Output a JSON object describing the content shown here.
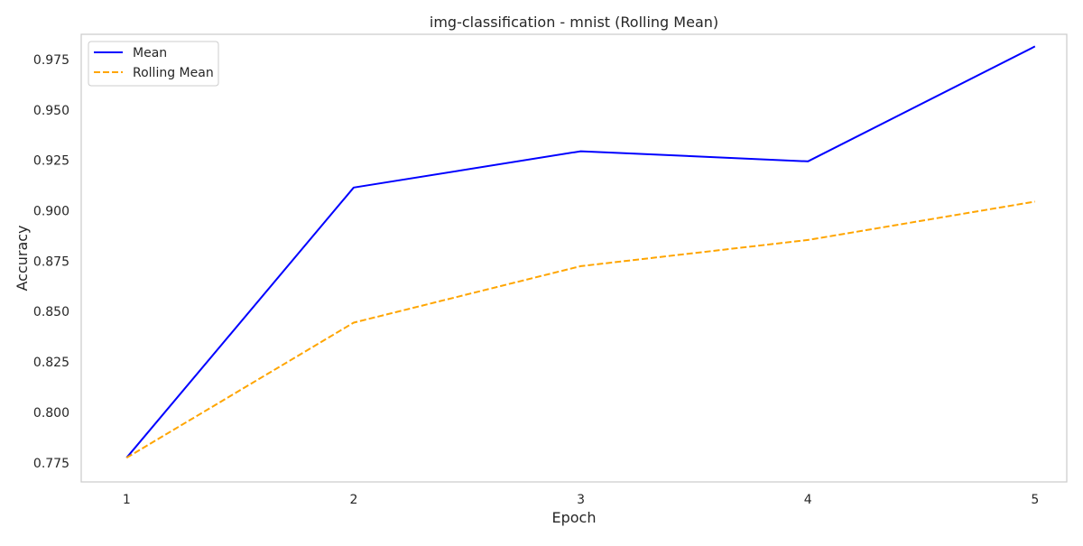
{
  "chart_data": {
    "type": "line",
    "title": "img-classification - mnist (Rolling Mean)",
    "xlabel": "Epoch",
    "ylabel": "Accuracy",
    "x": [
      1,
      2,
      3,
      4,
      5
    ],
    "xticks": [
      "1",
      "2",
      "3",
      "4",
      "5"
    ],
    "yticks": [
      "0.775",
      "0.800",
      "0.825",
      "0.850",
      "0.875",
      "0.900",
      "0.925",
      "0.950",
      "0.975"
    ],
    "ytick_values": [
      0.775,
      0.8,
      0.825,
      0.85,
      0.875,
      0.9,
      0.925,
      0.95,
      0.975
    ],
    "xlim": [
      0.8,
      5.14
    ],
    "ylim": [
      0.7655,
      0.9875
    ],
    "grid": false,
    "legend_position": "top-left",
    "series": [
      {
        "name": "Mean",
        "values": [
          0.7775,
          0.9115,
          0.9295,
          0.9245,
          0.9815
        ],
        "color": "#0000ff",
        "style": "solid"
      },
      {
        "name": "Rolling Mean",
        "values": [
          0.7775,
          0.8445,
          0.8725,
          0.8855,
          0.9045
        ],
        "color": "#ffa500",
        "style": "dashed"
      }
    ]
  }
}
